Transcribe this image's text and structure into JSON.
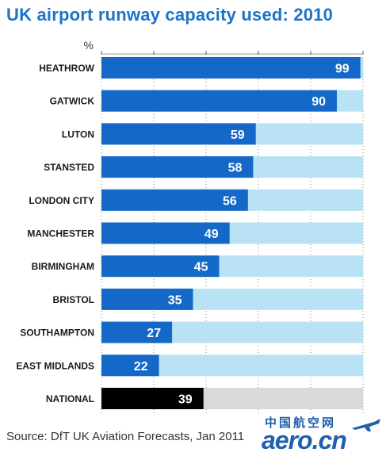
{
  "title": "UK airport runway capacity used: 2010",
  "source": "Source: DfT UK Aviation Forecasts, Jan 2011",
  "watermark": {
    "chinese": "中国航空网",
    "latin": "aero.cn"
  },
  "colors": {
    "title": "#1b74c8",
    "bar": "#1469c8",
    "bar_remainder": "#b9e3f4",
    "national_bar": "#000000",
    "national_remainder": "#d9d9d9",
    "gridline": "#333333"
  },
  "chart_data": {
    "type": "bar",
    "orientation": "horizontal",
    "stacked_to": 100,
    "title": "UK airport runway capacity used: 2010",
    "unit_label": "%",
    "xlim": [
      0,
      100
    ],
    "categories": [
      "HEATHROW",
      "GATWICK",
      "LUTON",
      "STANSTED",
      "LONDON CITY",
      "MANCHESTER",
      "BIRMINGHAM",
      "BRISTOL",
      "SOUTHAMPTON",
      "EAST MIDLANDS",
      "NATIONAL"
    ],
    "values": [
      99,
      90,
      59,
      58,
      56,
      49,
      45,
      35,
      27,
      22,
      39
    ],
    "highlight_category": "NATIONAL"
  }
}
